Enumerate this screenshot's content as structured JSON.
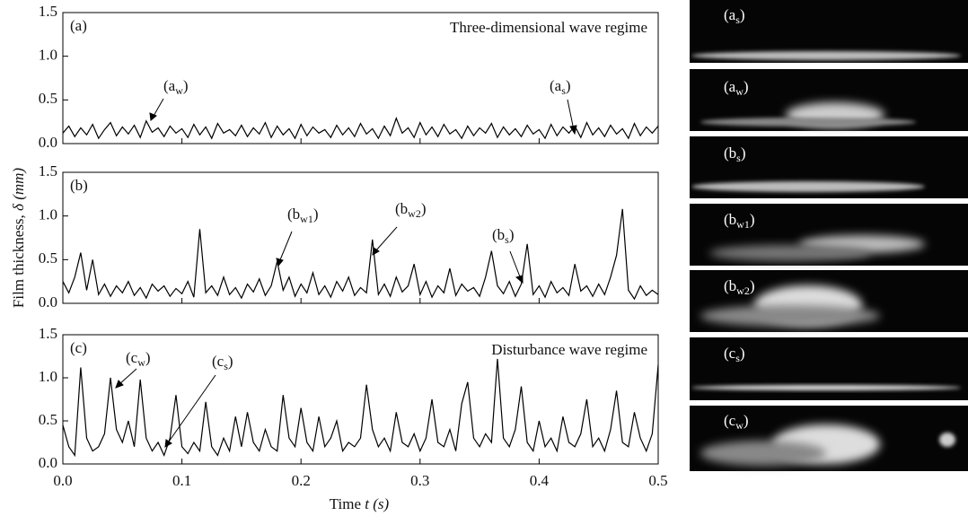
{
  "figure": {
    "ylabel": [
      "Film thickness, ",
      "δ (mm)"
    ],
    "xlabel": [
      "Time ",
      "t (s)"
    ]
  },
  "chart_data": [
    {
      "type": "line",
      "panel": "(a)",
      "title": "Three-dimensional wave regime",
      "color": "#000000",
      "x": [
        0,
        0.005,
        0.01,
        0.015,
        0.02,
        0.025,
        0.03,
        0.035,
        0.04,
        0.045,
        0.05,
        0.055,
        0.06,
        0.065,
        0.07,
        0.075,
        0.08,
        0.085,
        0.09,
        0.095,
        0.1,
        0.105,
        0.11,
        0.115,
        0.12,
        0.125,
        0.13,
        0.135,
        0.14,
        0.145,
        0.15,
        0.155,
        0.16,
        0.165,
        0.17,
        0.175,
        0.18,
        0.185,
        0.19,
        0.195,
        0.2,
        0.205,
        0.21,
        0.215,
        0.22,
        0.225,
        0.23,
        0.235,
        0.24,
        0.245,
        0.25,
        0.255,
        0.26,
        0.265,
        0.27,
        0.275,
        0.28,
        0.285,
        0.29,
        0.295,
        0.3,
        0.305,
        0.31,
        0.315,
        0.32,
        0.325,
        0.33,
        0.335,
        0.34,
        0.345,
        0.35,
        0.355,
        0.36,
        0.365,
        0.37,
        0.375,
        0.38,
        0.385,
        0.39,
        0.395,
        0.4,
        0.405,
        0.41,
        0.415,
        0.42,
        0.425,
        0.43,
        0.435,
        0.44,
        0.445,
        0.45,
        0.455,
        0.46,
        0.465,
        0.47,
        0.475,
        0.48,
        0.485,
        0.49,
        0.495,
        0.5
      ],
      "values": [
        0.12,
        0.2,
        0.08,
        0.18,
        0.1,
        0.22,
        0.06,
        0.16,
        0.24,
        0.09,
        0.19,
        0.11,
        0.21,
        0.07,
        0.26,
        0.13,
        0.18,
        0.08,
        0.2,
        0.12,
        0.17,
        0.07,
        0.22,
        0.1,
        0.19,
        0.06,
        0.23,
        0.12,
        0.16,
        0.09,
        0.21,
        0.08,
        0.18,
        0.11,
        0.24,
        0.07,
        0.2,
        0.1,
        0.17,
        0.06,
        0.22,
        0.09,
        0.19,
        0.12,
        0.16,
        0.07,
        0.21,
        0.1,
        0.18,
        0.08,
        0.23,
        0.11,
        0.17,
        0.06,
        0.2,
        0.09,
        0.29,
        0.12,
        0.18,
        0.07,
        0.24,
        0.1,
        0.19,
        0.08,
        0.22,
        0.11,
        0.16,
        0.06,
        0.2,
        0.09,
        0.18,
        0.12,
        0.23,
        0.07,
        0.19,
        0.1,
        0.17,
        0.08,
        0.21,
        0.11,
        0.16,
        0.06,
        0.22,
        0.09,
        0.19,
        0.12,
        0.2,
        0.07,
        0.24,
        0.1,
        0.18,
        0.08,
        0.21,
        0.11,
        0.17,
        0.06,
        0.23,
        0.09,
        0.19,
        0.12,
        0.2
      ],
      "xlim": [
        0,
        0.5
      ],
      "ylim": [
        0,
        1.5
      ],
      "xticks": [
        {
          "value": 0,
          "label": "0.0"
        },
        0.1,
        0.2,
        0.3,
        0.4,
        0.5
      ],
      "xticklabels": false,
      "yticks": [
        {
          "value": 0,
          "label": "0.0"
        },
        0.5,
        {
          "value": 1,
          "label": "1.0"
        },
        1.5
      ],
      "annotations": [
        [
          "(a",
          "w",
          ")"
        ],
        [
          "(a",
          "s",
          ")"
        ]
      ]
    },
    {
      "type": "line",
      "panel": "(b)",
      "color": "#000000",
      "x": [
        0,
        0.005,
        0.01,
        0.015,
        0.02,
        0.025,
        0.03,
        0.035,
        0.04,
        0.045,
        0.05,
        0.055,
        0.06,
        0.065,
        0.07,
        0.075,
        0.08,
        0.085,
        0.09,
        0.095,
        0.1,
        0.105,
        0.11,
        0.115,
        0.12,
        0.125,
        0.13,
        0.135,
        0.14,
        0.145,
        0.15,
        0.155,
        0.16,
        0.165,
        0.17,
        0.175,
        0.18,
        0.185,
        0.19,
        0.195,
        0.2,
        0.205,
        0.21,
        0.215,
        0.22,
        0.225,
        0.23,
        0.235,
        0.24,
        0.245,
        0.25,
        0.255,
        0.26,
        0.265,
        0.27,
        0.275,
        0.28,
        0.285,
        0.29,
        0.295,
        0.3,
        0.305,
        0.31,
        0.315,
        0.32,
        0.325,
        0.33,
        0.335,
        0.34,
        0.345,
        0.35,
        0.355,
        0.36,
        0.365,
        0.37,
        0.375,
        0.38,
        0.385,
        0.39,
        0.395,
        0.4,
        0.405,
        0.41,
        0.415,
        0.42,
        0.425,
        0.43,
        0.435,
        0.44,
        0.445,
        0.45,
        0.455,
        0.46,
        0.465,
        0.47,
        0.475,
        0.48,
        0.485,
        0.49,
        0.495,
        0.5
      ],
      "values": [
        0.25,
        0.12,
        0.3,
        0.58,
        0.15,
        0.5,
        0.1,
        0.22,
        0.08,
        0.2,
        0.12,
        0.25,
        0.09,
        0.18,
        0.06,
        0.22,
        0.14,
        0.2,
        0.08,
        0.17,
        0.11,
        0.25,
        0.07,
        0.85,
        0.12,
        0.2,
        0.09,
        0.3,
        0.1,
        0.18,
        0.06,
        0.22,
        0.13,
        0.28,
        0.09,
        0.2,
        0.48,
        0.15,
        0.3,
        0.08,
        0.22,
        0.12,
        0.35,
        0.1,
        0.2,
        0.07,
        0.25,
        0.14,
        0.3,
        0.09,
        0.18,
        0.12,
        0.73,
        0.1,
        0.22,
        0.08,
        0.3,
        0.13,
        0.2,
        0.45,
        0.1,
        0.25,
        0.07,
        0.2,
        0.12,
        0.4,
        0.09,
        0.22,
        0.14,
        0.18,
        0.08,
        0.3,
        0.6,
        0.2,
        0.11,
        0.25,
        0.08,
        0.22,
        0.68,
        0.1,
        0.2,
        0.07,
        0.25,
        0.12,
        0.18,
        0.09,
        0.45,
        0.14,
        0.2,
        0.08,
        0.22,
        0.1,
        0.3,
        0.55,
        1.08,
        0.15,
        0.05,
        0.2,
        0.09,
        0.15,
        0.1
      ],
      "xlim": [
        0,
        0.5
      ],
      "ylim": [
        0,
        1.5
      ],
      "xticks": [
        {
          "value": 0,
          "label": "0.0"
        },
        0.1,
        0.2,
        0.3,
        0.4,
        0.5
      ],
      "xticklabels": false,
      "yticks": [
        {
          "value": 0,
          "label": "0.0"
        },
        0.5,
        {
          "value": 1,
          "label": "1.0"
        },
        1.5
      ],
      "annotations": [
        [
          "(b",
          "w1",
          ")"
        ],
        [
          "(b",
          "w2",
          ")"
        ],
        [
          "(b",
          "s",
          ")"
        ]
      ]
    },
    {
      "type": "line",
      "panel": "(c)",
      "title": "Disturbance wave regime",
      "color": "#000000",
      "x": [
        0,
        0.005,
        0.01,
        0.015,
        0.02,
        0.025,
        0.03,
        0.035,
        0.04,
        0.045,
        0.05,
        0.055,
        0.06,
        0.065,
        0.07,
        0.075,
        0.08,
        0.085,
        0.09,
        0.095,
        0.1,
        0.105,
        0.11,
        0.115,
        0.12,
        0.125,
        0.13,
        0.135,
        0.14,
        0.145,
        0.15,
        0.155,
        0.16,
        0.165,
        0.17,
        0.175,
        0.18,
        0.185,
        0.19,
        0.195,
        0.2,
        0.205,
        0.21,
        0.215,
        0.22,
        0.225,
        0.23,
        0.235,
        0.24,
        0.245,
        0.25,
        0.255,
        0.26,
        0.265,
        0.27,
        0.275,
        0.28,
        0.285,
        0.29,
        0.295,
        0.3,
        0.305,
        0.31,
        0.315,
        0.32,
        0.325,
        0.33,
        0.335,
        0.34,
        0.345,
        0.35,
        0.355,
        0.36,
        0.365,
        0.37,
        0.375,
        0.38,
        0.385,
        0.39,
        0.395,
        0.4,
        0.405,
        0.41,
        0.415,
        0.42,
        0.425,
        0.43,
        0.435,
        0.44,
        0.445,
        0.45,
        0.455,
        0.46,
        0.465,
        0.47,
        0.475,
        0.48,
        0.485,
        0.49,
        0.495,
        0.5
      ],
      "values": [
        0.45,
        0.2,
        0.1,
        1.12,
        0.3,
        0.15,
        0.2,
        0.35,
        1.0,
        0.4,
        0.25,
        0.5,
        0.2,
        0.98,
        0.3,
        0.15,
        0.25,
        0.1,
        0.3,
        0.8,
        0.2,
        0.12,
        0.25,
        0.15,
        0.72,
        0.2,
        0.1,
        0.3,
        0.15,
        0.55,
        0.2,
        0.6,
        0.25,
        0.15,
        0.4,
        0.2,
        0.15,
        0.8,
        0.3,
        0.2,
        0.65,
        0.25,
        0.15,
        0.55,
        0.2,
        0.3,
        0.5,
        0.15,
        0.25,
        0.2,
        0.3,
        0.92,
        0.4,
        0.2,
        0.3,
        0.15,
        0.6,
        0.25,
        0.2,
        0.35,
        0.15,
        0.3,
        0.75,
        0.25,
        0.2,
        0.4,
        0.15,
        0.7,
        0.95,
        0.3,
        0.2,
        0.35,
        0.25,
        1.22,
        0.3,
        0.2,
        0.4,
        0.9,
        0.25,
        0.15,
        0.5,
        0.2,
        0.3,
        0.15,
        0.55,
        0.25,
        0.2,
        0.35,
        0.75,
        0.2,
        0.3,
        0.15,
        0.4,
        0.85,
        0.25,
        0.2,
        0.6,
        0.3,
        0.15,
        0.35,
        1.15
      ],
      "xlim": [
        0,
        0.5
      ],
      "ylim": [
        0,
        1.5
      ],
      "xticks": [
        {
          "value": 0,
          "label": "0.0"
        },
        0.1,
        0.2,
        0.3,
        0.4,
        0.5
      ],
      "xticklabels": true,
      "yticks": [
        {
          "value": 0,
          "label": "0.0"
        },
        0.5,
        {
          "value": 1,
          "label": "1.0"
        },
        1.5
      ],
      "annotations": [
        [
          "(c",
          "w",
          ")"
        ],
        [
          "(c",
          "s",
          ")"
        ]
      ]
    }
  ],
  "images": [
    [
      "(a",
      "s",
      ")"
    ],
    [
      "(a",
      "w",
      ")"
    ],
    [
      "(b",
      "s",
      ")"
    ],
    [
      "(b",
      "w1",
      ")"
    ],
    [
      "(b",
      "w2",
      ")"
    ],
    [
      "(c",
      "s",
      ")"
    ],
    [
      "(c",
      "w",
      ")"
    ]
  ]
}
